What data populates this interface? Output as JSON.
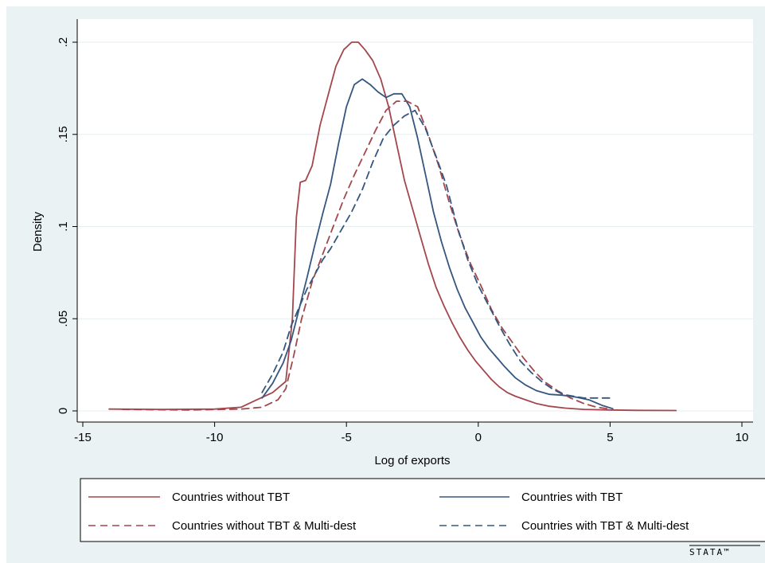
{
  "chart_data": {
    "type": "line",
    "title": "",
    "xlabel": "Log of exports",
    "ylabel": "Density",
    "xlim": [
      -15,
      10
    ],
    "ylim": [
      0,
      0.2
    ],
    "x_ticks": [
      -15,
      -10,
      -5,
      0,
      5,
      10
    ],
    "x_tick_labels": [
      "-15",
      "-10",
      "-5",
      "0",
      "5",
      "10"
    ],
    "y_ticks": [
      0,
      0.05,
      0.1,
      0.15,
      0.2
    ],
    "y_tick_labels": [
      "0",
      ".05",
      ".1",
      ".15",
      ".2"
    ],
    "grid": "horizontal",
    "legend_position": "bottom",
    "series": [
      {
        "name": "Countries without TBT",
        "color": "#a2474d",
        "dash": "solid",
        "x": [
          -14,
          -12,
          -10,
          -9,
          -8.4,
          -7.8,
          -7.3,
          -7.05,
          -6.9,
          -6.75,
          -6.55,
          -6.3,
          -6,
          -5.7,
          -5.4,
          -5.1,
          -4.8,
          -4.55,
          -4.3,
          -4.0,
          -3.7,
          -3.4,
          -3.1,
          -2.8,
          -2.5,
          -2.2,
          -1.9,
          -1.6,
          -1.3,
          -1,
          -0.7,
          -0.4,
          -0.1,
          0.2,
          0.5,
          0.8,
          1.1,
          1.4,
          1.8,
          2.2,
          2.7,
          3.3,
          4,
          5,
          6,
          7.5
        ],
        "y": [
          0.001,
          0.0008,
          0.001,
          0.002,
          0.006,
          0.01,
          0.016,
          0.05,
          0.105,
          0.124,
          0.125,
          0.133,
          0.155,
          0.171,
          0.187,
          0.196,
          0.2,
          0.2,
          0.196,
          0.19,
          0.18,
          0.165,
          0.145,
          0.125,
          0.11,
          0.095,
          0.08,
          0.067,
          0.057,
          0.048,
          0.04,
          0.033,
          0.027,
          0.022,
          0.017,
          0.013,
          0.01,
          0.008,
          0.006,
          0.004,
          0.0025,
          0.0015,
          0.0008,
          0.0005,
          0.0003,
          0.0002
        ]
      },
      {
        "name": "Countries with TBT",
        "color": "#34567f",
        "dash": "solid",
        "x": [
          -8.2,
          -7.8,
          -7.4,
          -7.1,
          -6.8,
          -6.5,
          -6.2,
          -5.9,
          -5.6,
          -5.3,
          -5.0,
          -4.7,
          -4.4,
          -4.1,
          -3.8,
          -3.5,
          -3.2,
          -2.9,
          -2.6,
          -2.3,
          -2.0,
          -1.7,
          -1.4,
          -1.1,
          -0.8,
          -0.5,
          -0.2,
          0.1,
          0.4,
          0.7,
          1.0,
          1.4,
          1.8,
          2.2,
          2.7,
          3.2,
          3.7,
          4.2,
          4.7,
          5.1
        ],
        "y": [
          0.007,
          0.015,
          0.026,
          0.038,
          0.055,
          0.072,
          0.09,
          0.107,
          0.123,
          0.145,
          0.165,
          0.177,
          0.18,
          0.177,
          0.173,
          0.17,
          0.172,
          0.172,
          0.165,
          0.148,
          0.128,
          0.108,
          0.092,
          0.078,
          0.066,
          0.056,
          0.048,
          0.04,
          0.034,
          0.029,
          0.024,
          0.018,
          0.014,
          0.011,
          0.009,
          0.0085,
          0.0075,
          0.006,
          0.003,
          0.0012
        ]
      },
      {
        "name": "Countries without TBT & Multi-dest",
        "color": "#a2474d",
        "dash": "dashed",
        "x": [
          -13.5,
          -11,
          -9,
          -8.2,
          -7.6,
          -7.3,
          -7.0,
          -6.7,
          -6.3,
          -5.9,
          -5.5,
          -5.1,
          -4.7,
          -4.3,
          -3.9,
          -3.5,
          -3.1,
          -2.7,
          -2.3,
          -1.9,
          -1.5,
          -1.1,
          -0.7,
          -0.3,
          0.1,
          0.5,
          0.9,
          1.3,
          1.7,
          2.1,
          2.5,
          3.0,
          3.5,
          4.0,
          4.5,
          5.0
        ],
        "y": [
          0.0008,
          0.0005,
          0.001,
          0.002,
          0.006,
          0.012,
          0.03,
          0.05,
          0.07,
          0.085,
          0.1,
          0.115,
          0.128,
          0.14,
          0.152,
          0.163,
          0.168,
          0.168,
          0.165,
          0.15,
          0.133,
          0.113,
          0.095,
          0.08,
          0.068,
          0.055,
          0.045,
          0.037,
          0.029,
          0.022,
          0.016,
          0.011,
          0.007,
          0.004,
          0.002,
          0.001
        ]
      },
      {
        "name": "Countries with TBT & Multi-dest",
        "color": "#34567f",
        "dash": "dashed",
        "x": [
          -8.2,
          -7.8,
          -7.4,
          -7.1,
          -6.8,
          -6.5,
          -6.2,
          -5.9,
          -5.6,
          -5.2,
          -4.8,
          -4.4,
          -4.0,
          -3.6,
          -3.2,
          -2.8,
          -2.4,
          -2.0,
          -1.6,
          -1.2,
          -0.8,
          -0.4,
          0,
          0.4,
          0.8,
          1.2,
          1.6,
          2.0,
          2.4,
          2.8,
          3.2,
          3.6,
          4.0,
          4.5,
          5.1
        ],
        "y": [
          0.01,
          0.02,
          0.032,
          0.046,
          0.056,
          0.066,
          0.074,
          0.082,
          0.088,
          0.098,
          0.108,
          0.12,
          0.135,
          0.148,
          0.155,
          0.16,
          0.163,
          0.153,
          0.138,
          0.122,
          0.1,
          0.082,
          0.068,
          0.057,
          0.046,
          0.036,
          0.027,
          0.021,
          0.016,
          0.012,
          0.009,
          0.008,
          0.007,
          0.007,
          0.007
        ]
      }
    ]
  },
  "legend": {
    "items": [
      {
        "label": "Countries without TBT",
        "color": "#a2474d",
        "dash": "solid"
      },
      {
        "label": "Countries with TBT",
        "color": "#34567f",
        "dash": "solid"
      },
      {
        "label": "Countries without TBT & Multi-dest",
        "color": "#a2474d",
        "dash": "dashed"
      },
      {
        "label": "Countries with TBT & Multi-dest",
        "color": "#34567f",
        "dash": "dashed"
      }
    ]
  },
  "watermark": "STATA™"
}
